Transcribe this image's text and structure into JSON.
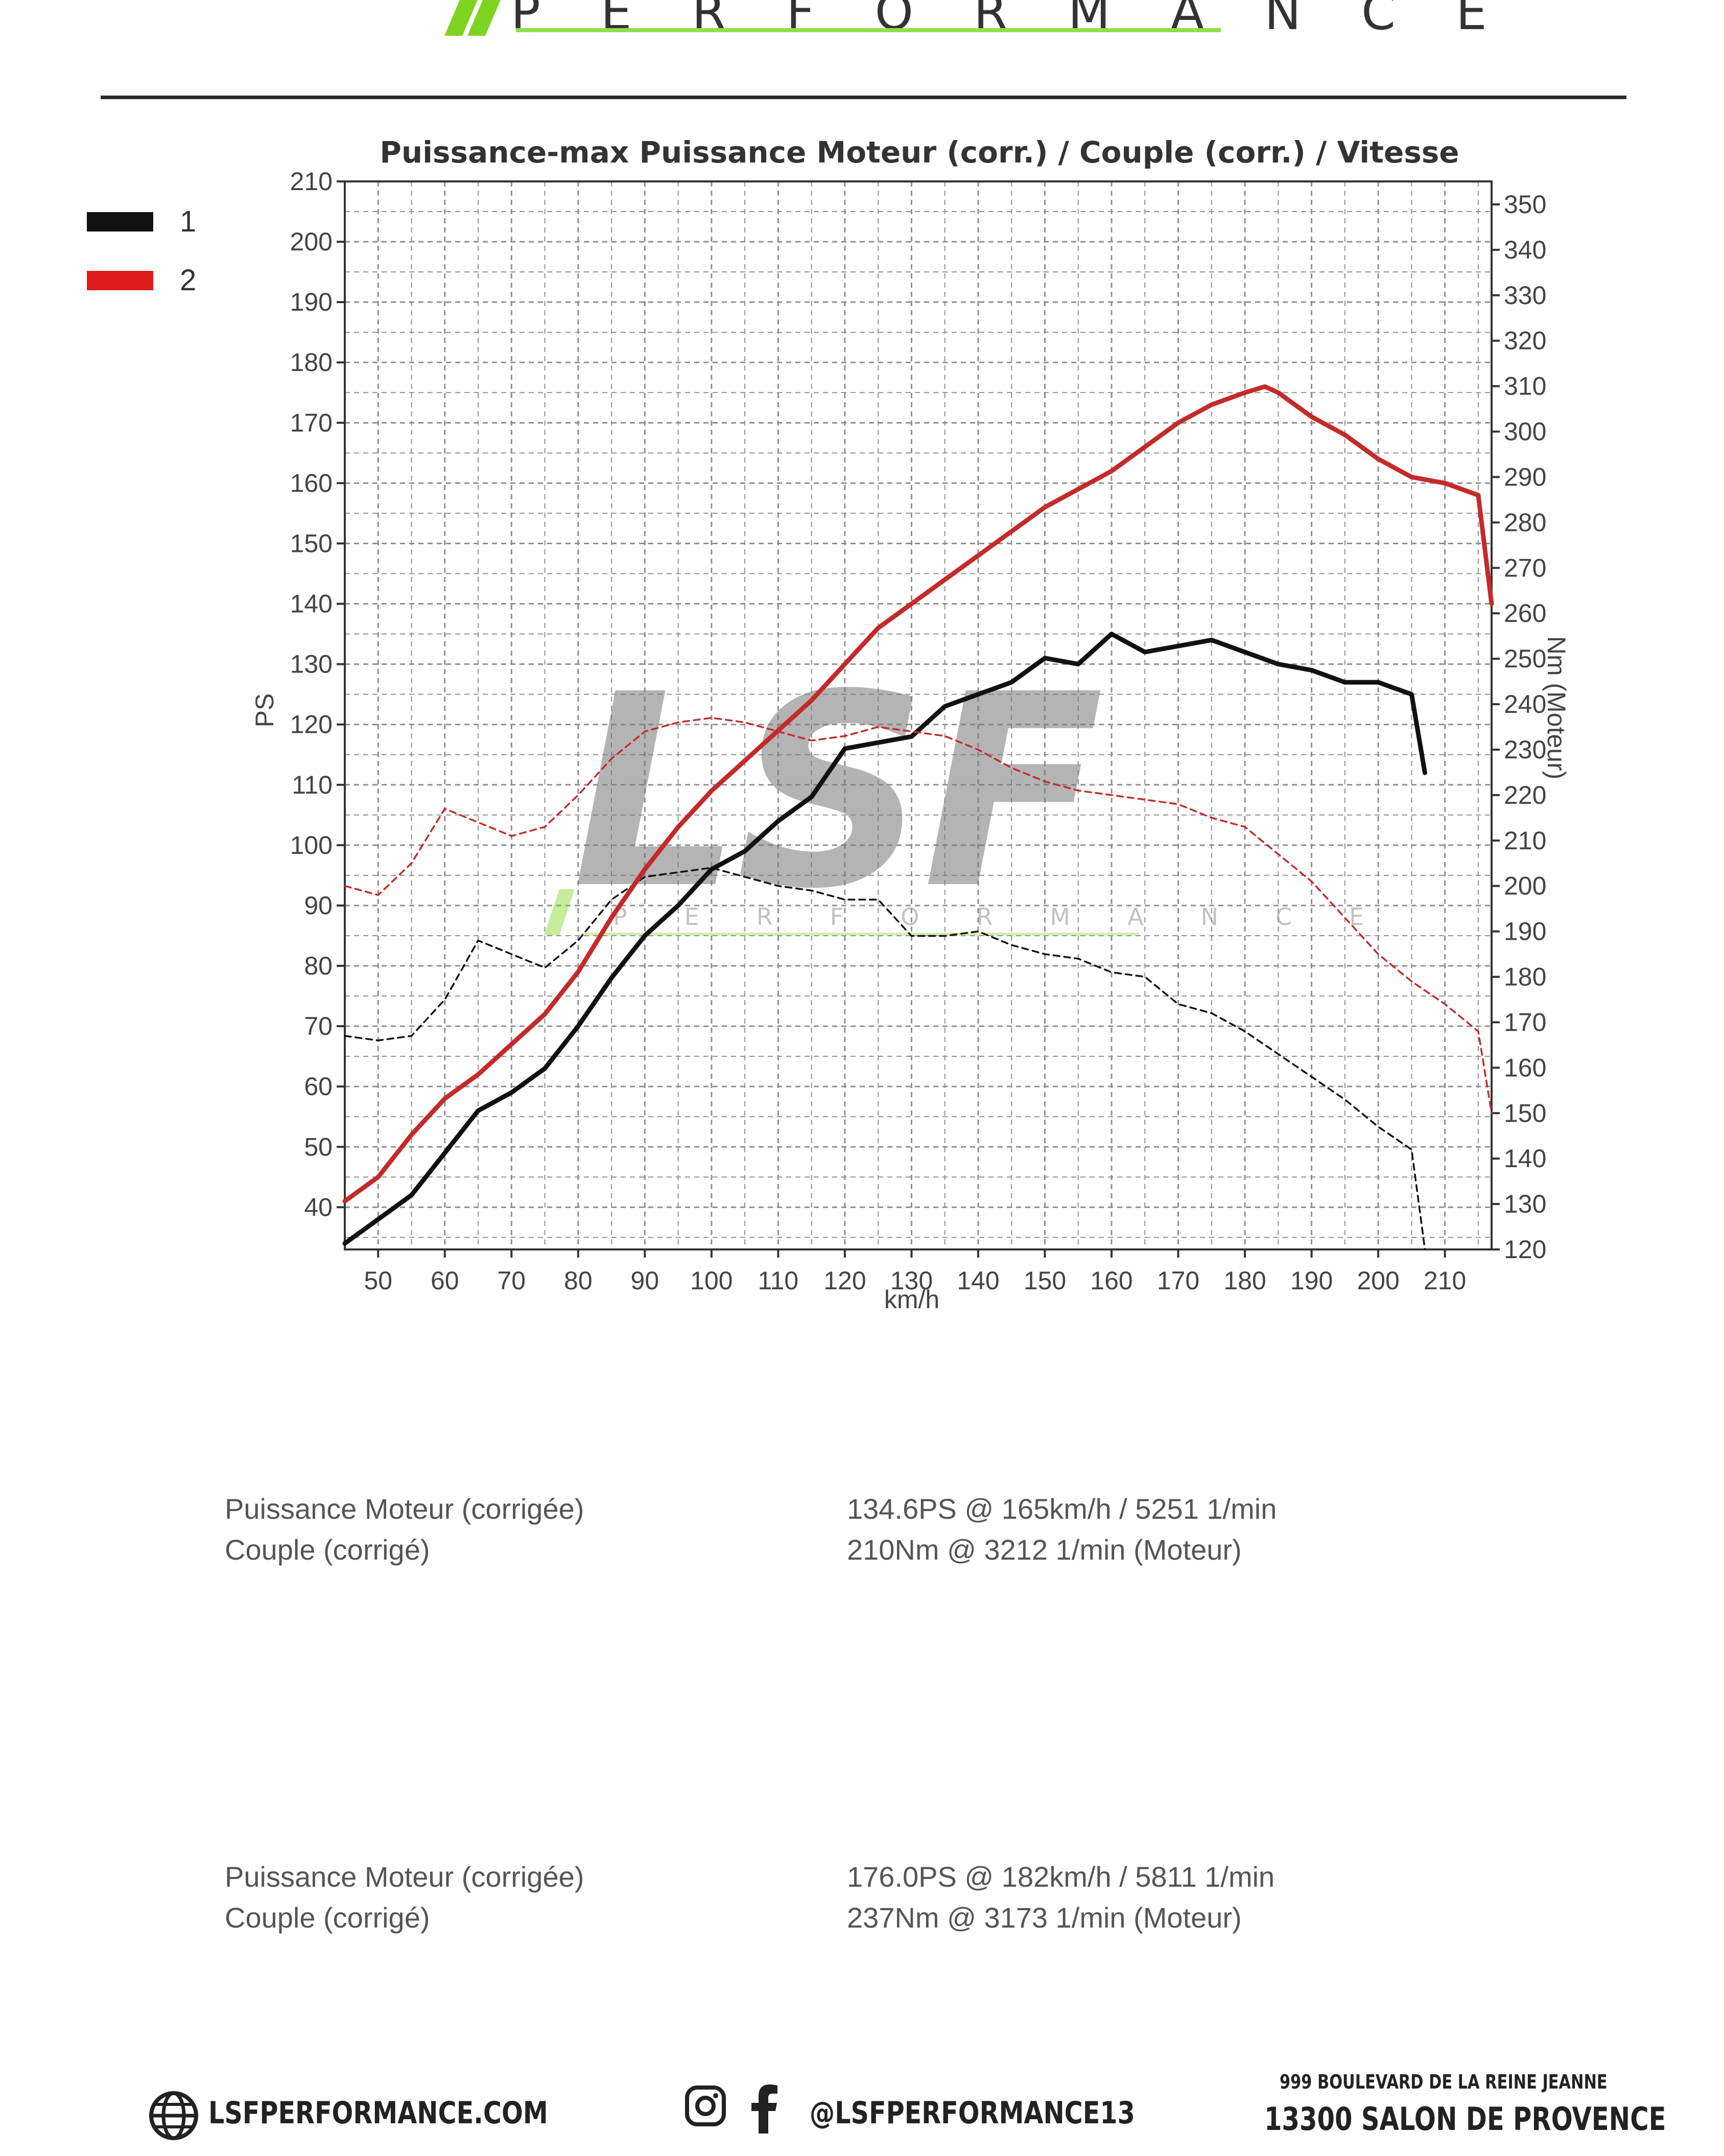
{
  "header": {
    "logo_text": "PERFORMANCE",
    "accent_color": "#7ed321"
  },
  "chart_data": {
    "type": "line",
    "title": "Puissance-max Puissance Moteur (corr.) / Couple (corr.) / Vitesse",
    "xlabel": "km/h",
    "ylabel_left": "PS",
    "ylabel_right": "Nm (Moteur)",
    "xlim": [
      45,
      217
    ],
    "ylim_left": [
      33,
      210
    ],
    "ylim_right": [
      120,
      350
    ],
    "x_ticks": [
      50,
      60,
      70,
      80,
      90,
      100,
      110,
      120,
      130,
      140,
      150,
      160,
      170,
      180,
      190,
      200,
      210
    ],
    "y_ticks_left": [
      40,
      50,
      60,
      70,
      80,
      90,
      100,
      110,
      120,
      130,
      140,
      150,
      160,
      170,
      180,
      190,
      200,
      210
    ],
    "y_ticks_right": [
      120,
      130,
      140,
      150,
      160,
      170,
      180,
      190,
      200,
      210,
      220,
      230,
      240,
      250,
      260,
      270,
      280,
      290,
      300,
      310,
      320,
      330,
      340,
      350
    ],
    "grid": true,
    "legend_position": "top-left",
    "legend": [
      {
        "label": "1",
        "color": "#111111"
      },
      {
        "label": "2",
        "color": "#e01b1b"
      }
    ],
    "watermark": {
      "text": "LSF",
      "subtext": "PERFORMANCE"
    },
    "series": [
      {
        "name": "1",
        "kind": "power",
        "axis": "left",
        "color": "#111111",
        "dashed": false,
        "x": [
          45,
          50,
          55,
          60,
          65,
          70,
          75,
          80,
          85,
          90,
          95,
          100,
          105,
          110,
          115,
          120,
          125,
          130,
          135,
          140,
          145,
          150,
          155,
          160,
          165,
          170,
          175,
          180,
          185,
          190,
          195,
          200,
          205,
          207
        ],
        "y": [
          34,
          38,
          42,
          49,
          56,
          59,
          63,
          70,
          78,
          85,
          90,
          96,
          99,
          104,
          108,
          116,
          117,
          118,
          123,
          125,
          127,
          131,
          130,
          135,
          132,
          133,
          134,
          132,
          130,
          129,
          127,
          127,
          125,
          112
        ]
      },
      {
        "name": "1",
        "kind": "torque",
        "axis": "right",
        "color": "#111111",
        "dashed": true,
        "x": [
          45,
          50,
          55,
          60,
          65,
          70,
          75,
          80,
          85,
          90,
          95,
          100,
          105,
          110,
          115,
          120,
          125,
          130,
          135,
          140,
          145,
          150,
          155,
          160,
          165,
          170,
          175,
          180,
          185,
          190,
          195,
          200,
          205,
          207
        ],
        "y": [
          167,
          166,
          167,
          175,
          188,
          185,
          182,
          188,
          197,
          202,
          203,
          204,
          202,
          200,
          199,
          197,
          197,
          189,
          189,
          190,
          187,
          185,
          184,
          181,
          180,
          174,
          172,
          168,
          163,
          158,
          153,
          147,
          142,
          120
        ]
      },
      {
        "name": "2",
        "kind": "power",
        "axis": "left",
        "color": "#c42a2a",
        "dashed": false,
        "x": [
          45,
          50,
          55,
          60,
          65,
          70,
          75,
          80,
          85,
          90,
          95,
          100,
          105,
          110,
          115,
          120,
          125,
          130,
          135,
          140,
          145,
          150,
          155,
          160,
          165,
          170,
          175,
          180,
          183,
          185,
          190,
          195,
          200,
          205,
          210,
          215,
          217
        ],
        "y": [
          41,
          45,
          52,
          58,
          62,
          67,
          72,
          79,
          88,
          96,
          103,
          109,
          114,
          119,
          124,
          130,
          136,
          140,
          144,
          148,
          152,
          156,
          159,
          162,
          166,
          170,
          173,
          175,
          176,
          175,
          171,
          168,
          164,
          161,
          160,
          158,
          140
        ]
      },
      {
        "name": "2",
        "kind": "torque",
        "axis": "right",
        "color": "#c42a2a",
        "dashed": true,
        "x": [
          45,
          50,
          55,
          60,
          65,
          70,
          75,
          80,
          85,
          90,
          95,
          100,
          105,
          110,
          115,
          120,
          125,
          130,
          135,
          140,
          145,
          150,
          155,
          160,
          165,
          170,
          175,
          180,
          185,
          190,
          195,
          200,
          205,
          210,
          215,
          217
        ],
        "y": [
          200,
          198,
          205,
          217,
          214,
          211,
          213,
          220,
          228,
          234,
          236,
          237,
          236,
          234,
          232,
          233,
          235,
          234,
          233,
          230,
          226,
          223,
          221,
          220,
          219,
          218,
          215,
          213,
          207,
          201,
          193,
          185,
          179,
          174,
          168,
          150
        ]
      }
    ]
  },
  "results": [
    {
      "power_label": "Puissance Moteur (corrigée)",
      "power_value": "134.6PS @ 165km/h / 5251 1/min",
      "torque_label": "Couple (corrigé)",
      "torque_value": "210Nm @ 3212 1/min (Moteur)"
    },
    {
      "power_label": "Puissance Moteur (corrigée)",
      "power_value": "176.0PS @ 182km/h / 5811 1/min",
      "torque_label": "Couple (corrigé)",
      "torque_value": "237Nm @ 3173 1/min (Moteur)"
    }
  ],
  "footer": {
    "website": "LSFPERFORMANCE.COM",
    "social": "@LSFPERFORMANCE13",
    "address_line1": "999 BOULEVARD DE LA REINE JEANNE",
    "address_line2": "13300 SALON DE PROVENCE",
    "icons": [
      "globe-icon",
      "instagram-icon",
      "facebook-icon"
    ]
  }
}
